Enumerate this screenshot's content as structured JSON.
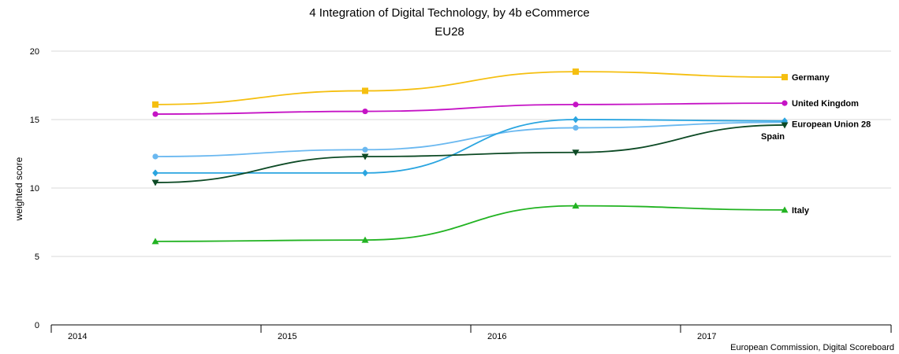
{
  "chart_data": {
    "type": "line",
    "title": "4 Integration of Digital Technology, by 4b eCommerce",
    "subtitle": "EU28",
    "ylabel": "weighted score",
    "xlabel": "",
    "ylim": [
      0,
      20
    ],
    "yticks": [
      0,
      5,
      10,
      15,
      20
    ],
    "categories": [
      "2014",
      "2015",
      "2016",
      "2017"
    ],
    "grid": true,
    "legend": "labels at line ends (right)",
    "series": [
      {
        "name": "Germany",
        "color": "#f5bf10",
        "marker": "square",
        "values": [
          16.1,
          17.1,
          18.5,
          18.1
        ]
      },
      {
        "name": "United Kingdom",
        "color": "#c513c5",
        "marker": "circle",
        "values": [
          15.4,
          15.6,
          16.1,
          16.2
        ]
      },
      {
        "name": "European Union 28",
        "color": "#6ab8f0",
        "marker": "circle",
        "values": [
          12.3,
          12.8,
          14.4,
          14.8
        ]
      },
      {
        "name": "",
        "color": "#2aa5e0",
        "marker": "diamond",
        "values": [
          11.1,
          11.1,
          15.0,
          14.9
        ]
      },
      {
        "name": "Spain",
        "color": "#0d4a25",
        "marker": "triangle-down",
        "values": [
          10.4,
          12.3,
          12.6,
          14.6
        ]
      },
      {
        "name": "Italy",
        "color": "#22b322",
        "marker": "triangle-up",
        "values": [
          6.1,
          6.2,
          8.7,
          8.4
        ]
      }
    ]
  },
  "credit": "European Commission, Digital Scoreboard"
}
